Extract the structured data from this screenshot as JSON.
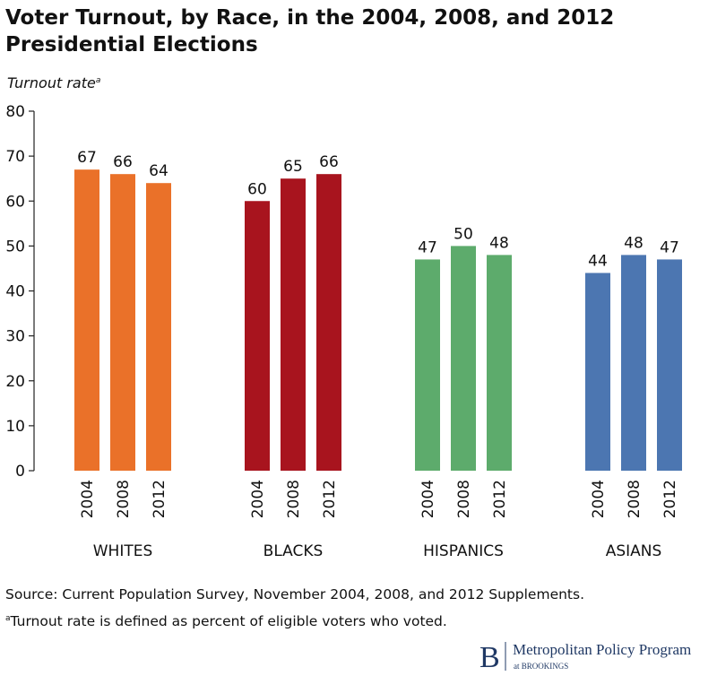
{
  "chart_data": {
    "type": "grouped-bar",
    "title": [
      "Voter Turnout, by Race, in the 2004, 2008, and 2012",
      "Presidential Elections"
    ],
    "y_label": "Turnout rate",
    "y_label_mark": "a",
    "ylim": [
      0,
      80
    ],
    "yticks": [
      0,
      10,
      20,
      30,
      40,
      50,
      60,
      70,
      80
    ],
    "groups": [
      {
        "name": "WHITES",
        "color": "#ea7129",
        "categories": [
          "2004",
          "2008",
          "2012"
        ],
        "values": [
          67,
          66,
          64
        ]
      },
      {
        "name": "BLACKS",
        "color": "#a8141e",
        "categories": [
          "2004",
          "2008",
          "2012"
        ],
        "values": [
          60,
          65,
          66
        ]
      },
      {
        "name": "HISPANICS",
        "color": "#5dab6c",
        "categories": [
          "2004",
          "2008",
          "2012"
        ],
        "values": [
          47,
          50,
          48
        ]
      },
      {
        "name": "ASIANS",
        "color": "#4c76b1",
        "categories": [
          "2004",
          "2008",
          "2012"
        ],
        "values": [
          44,
          48,
          47
        ]
      }
    ],
    "source": "Source: Current Population Survey, November 2004, 2008, and 2012 Supplements.",
    "footnote_mark": "a",
    "footnote": "Turnout rate is defined as percent of eligible voters who voted."
  },
  "branding": {
    "logo_letter": "B",
    "name": "Metropolitan Policy Program",
    "sub": "at BROOKINGS"
  }
}
